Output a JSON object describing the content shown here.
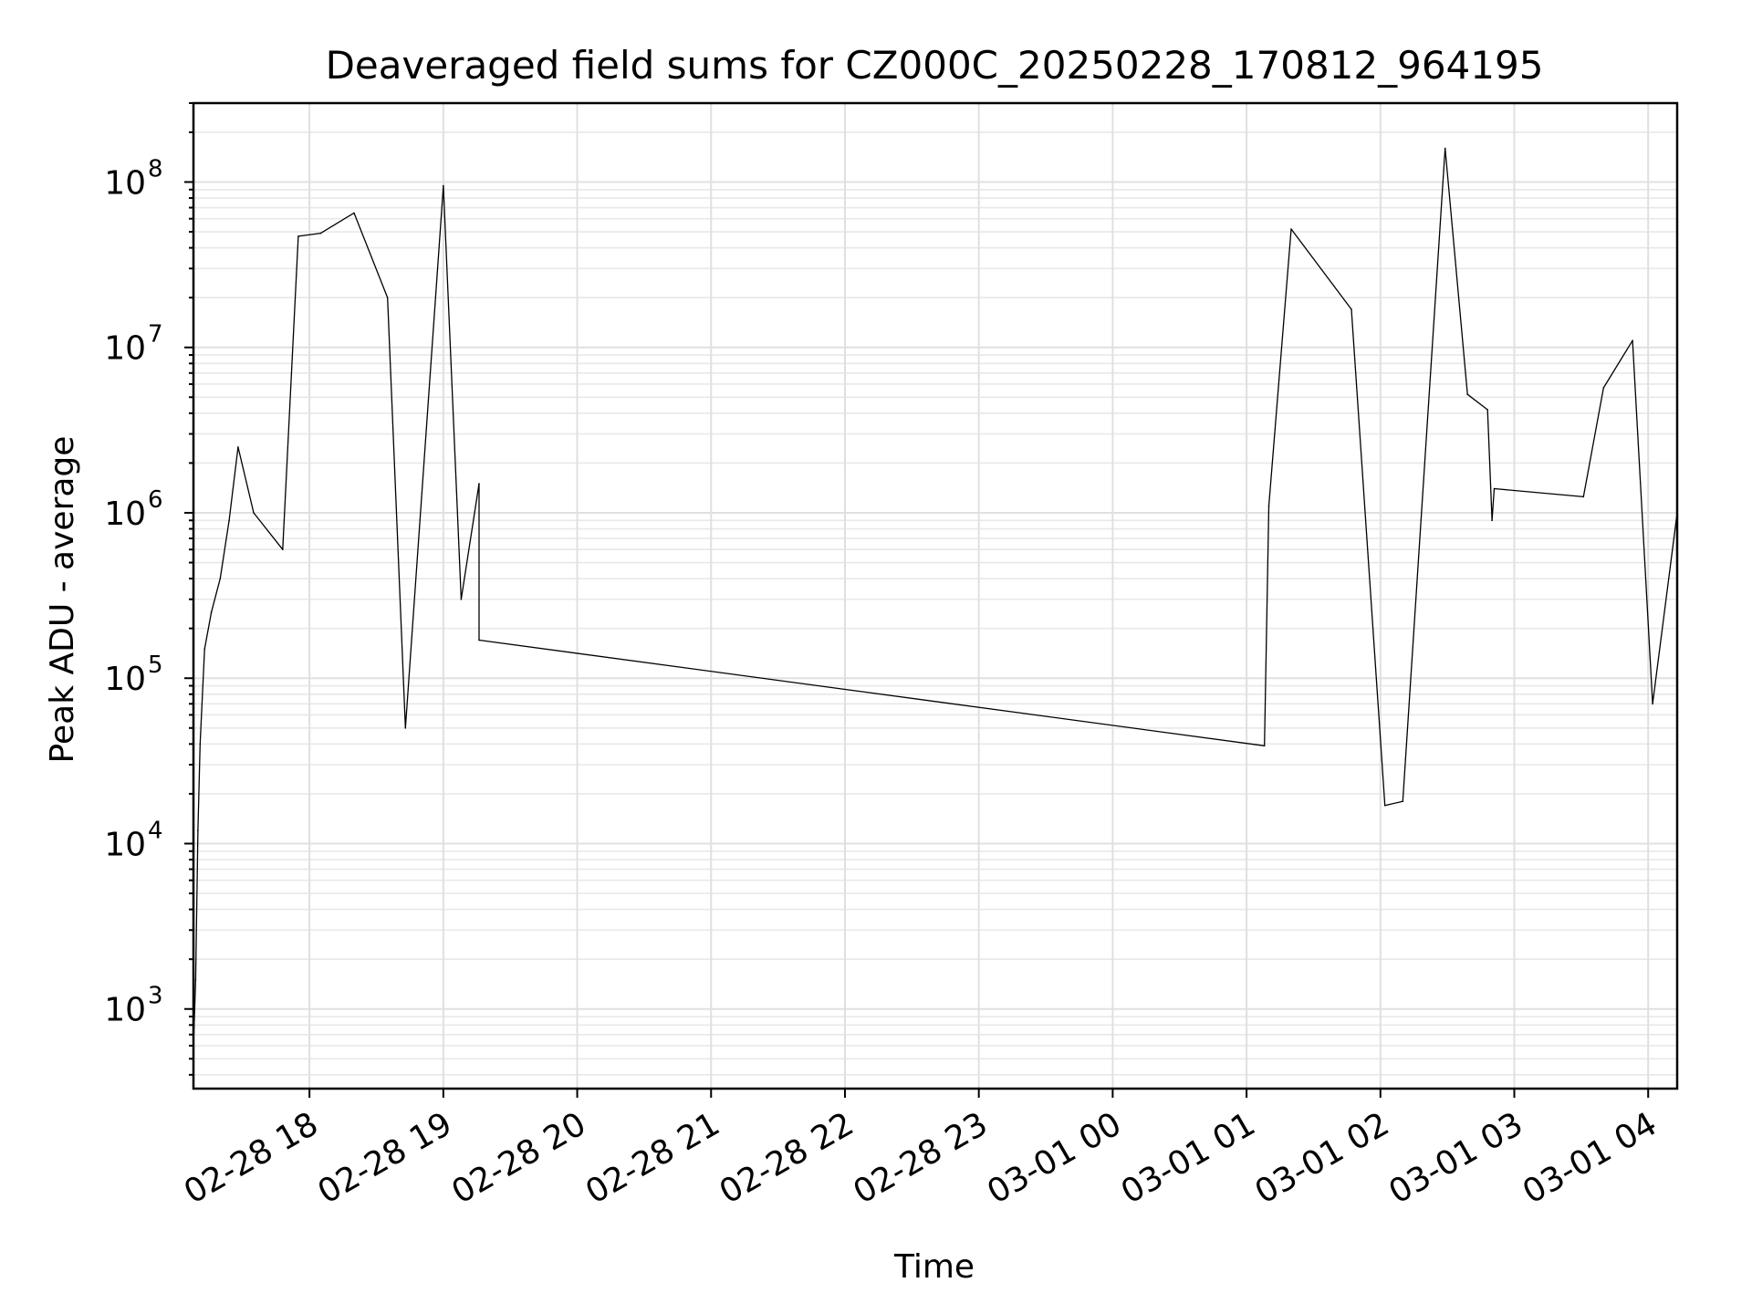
{
  "chart_data": {
    "type": "line",
    "title": "Deaveraged field sums for CZ000C_20250228_170812_964195",
    "xlabel": "Time",
    "ylabel": "Peak ADU - average",
    "yscale": "log",
    "ylim": [
      330,
      300000000
    ],
    "xlim": [
      "2025-02-28 17:08",
      "2025-03-01 04:13"
    ],
    "grid": true,
    "x_ticks": [
      {
        "value": "2025-02-28 18:00",
        "label": "02-28 18"
      },
      {
        "value": "2025-02-28 19:00",
        "label": "02-28 19"
      },
      {
        "value": "2025-02-28 20:00",
        "label": "02-28 20"
      },
      {
        "value": "2025-02-28 21:00",
        "label": "02-28 21"
      },
      {
        "value": "2025-02-28 22:00",
        "label": "02-28 22"
      },
      {
        "value": "2025-02-28 23:00",
        "label": "02-28 23"
      },
      {
        "value": "2025-03-01 00:00",
        "label": "03-01 00"
      },
      {
        "value": "2025-03-01 01:00",
        "label": "03-01 01"
      },
      {
        "value": "2025-03-01 02:00",
        "label": "03-01 02"
      },
      {
        "value": "2025-03-01 03:00",
        "label": "03-01 03"
      },
      {
        "value": "2025-03-01 04:00",
        "label": "03-01 04"
      }
    ],
    "y_ticks": [
      {
        "value": 1000,
        "base": "10",
        "exp": "3"
      },
      {
        "value": 10000,
        "base": "10",
        "exp": "4"
      },
      {
        "value": 100000,
        "base": "10",
        "exp": "5"
      },
      {
        "value": 1000000,
        "base": "10",
        "exp": "6"
      },
      {
        "value": 10000000,
        "base": "10",
        "exp": "7"
      },
      {
        "value": 100000000,
        "base": "10",
        "exp": "8"
      }
    ],
    "series": [
      {
        "color": "#000000",
        "points": [
          {
            "x": "2025-02-28 17:08",
            "y": 600
          },
          {
            "x": "2025-02-28 17:09",
            "y": 1500
          },
          {
            "x": "2025-02-28 17:10",
            "y": 12000
          },
          {
            "x": "2025-02-28 17:11",
            "y": 40000
          },
          {
            "x": "2025-02-28 17:13",
            "y": 150000
          },
          {
            "x": "2025-02-28 17:16",
            "y": 250000
          },
          {
            "x": "2025-02-28 17:20",
            "y": 400000
          },
          {
            "x": "2025-02-28 17:24",
            "y": 900000
          },
          {
            "x": "2025-02-28 17:28",
            "y": 2500000
          },
          {
            "x": "2025-02-28 17:35",
            "y": 1000000
          },
          {
            "x": "2025-02-28 17:48",
            "y": 600000
          },
          {
            "x": "2025-02-28 17:55",
            "y": 47000000
          },
          {
            "x": "2025-02-28 18:05",
            "y": 49000000
          },
          {
            "x": "2025-02-28 18:20",
            "y": 65000000
          },
          {
            "x": "2025-02-28 18:35",
            "y": 20000000
          },
          {
            "x": "2025-02-28 18:43",
            "y": 50000
          },
          {
            "x": "2025-02-28 19:00",
            "y": 95000000
          },
          {
            "x": "2025-02-28 19:08",
            "y": 300000
          },
          {
            "x": "2025-02-28 19:16",
            "y": 1500000
          },
          {
            "x": "2025-02-28 19:16",
            "y": 170000
          },
          {
            "x": "2025-03-01 01:08",
            "y": 39000
          },
          {
            "x": "2025-03-01 01:10",
            "y": 1100000
          },
          {
            "x": "2025-03-01 01:20",
            "y": 52000000
          },
          {
            "x": "2025-03-01 01:47",
            "y": 17000000
          },
          {
            "x": "2025-03-01 02:02",
            "y": 17000
          },
          {
            "x": "2025-03-01 02:10",
            "y": 18000
          },
          {
            "x": "2025-03-01 02:29",
            "y": 160000000
          },
          {
            "x": "2025-03-01 02:39",
            "y": 5200000
          },
          {
            "x": "2025-03-01 02:48",
            "y": 4200000
          },
          {
            "x": "2025-03-01 02:50",
            "y": 900000
          },
          {
            "x": "2025-03-01 02:51",
            "y": 1400000
          },
          {
            "x": "2025-03-01 03:31",
            "y": 1250000
          },
          {
            "x": "2025-03-01 03:40",
            "y": 5700000
          },
          {
            "x": "2025-03-01 03:53",
            "y": 11000000
          },
          {
            "x": "2025-03-01 04:02",
            "y": 70000
          },
          {
            "x": "2025-03-01 04:13",
            "y": 1000000
          }
        ]
      }
    ]
  }
}
